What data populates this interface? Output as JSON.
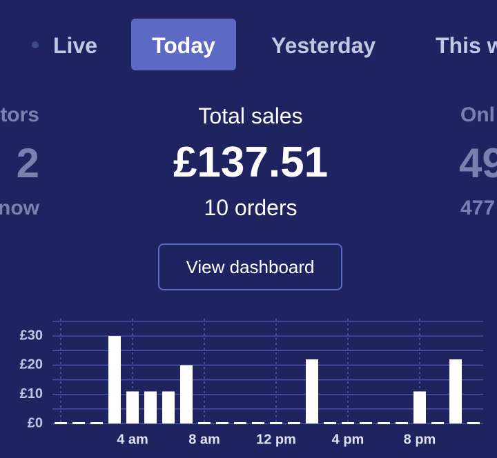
{
  "tabs": [
    "Live",
    "Today",
    "Yesterday",
    "This w"
  ],
  "left_stat": {
    "label": "tors",
    "value": "2",
    "sub": "now"
  },
  "main_stat": {
    "label": "Total sales",
    "value": "£137.51",
    "sub": "10 orders"
  },
  "right_stat": {
    "label": "Onl",
    "value": "49",
    "sub": "477"
  },
  "button": "View dashboard",
  "chart_data": {
    "type": "bar",
    "categories": [
      null,
      null,
      null,
      null,
      "4 am",
      null,
      null,
      null,
      "8 am",
      null,
      null,
      null,
      "12 pm",
      null,
      null,
      null,
      "4 pm",
      null,
      null,
      null,
      "8 pm",
      null,
      null,
      null
    ],
    "values": [
      0,
      0,
      0,
      30,
      11,
      11,
      11,
      20,
      0,
      0,
      0,
      0,
      0,
      0,
      22,
      0,
      0,
      0,
      0,
      0,
      11,
      0,
      22,
      0
    ],
    "color": "#ffffff",
    "ylim": [
      0,
      35
    ],
    "yticks": [
      {
        "value": 0,
        "label": "£0"
      },
      {
        "value": 10,
        "label": "£10"
      },
      {
        "value": 20,
        "label": "£20"
      },
      {
        "value": 30,
        "label": "£30"
      }
    ],
    "minor_yticks": [
      5,
      15,
      25,
      35
    ],
    "grid": true
  }
}
